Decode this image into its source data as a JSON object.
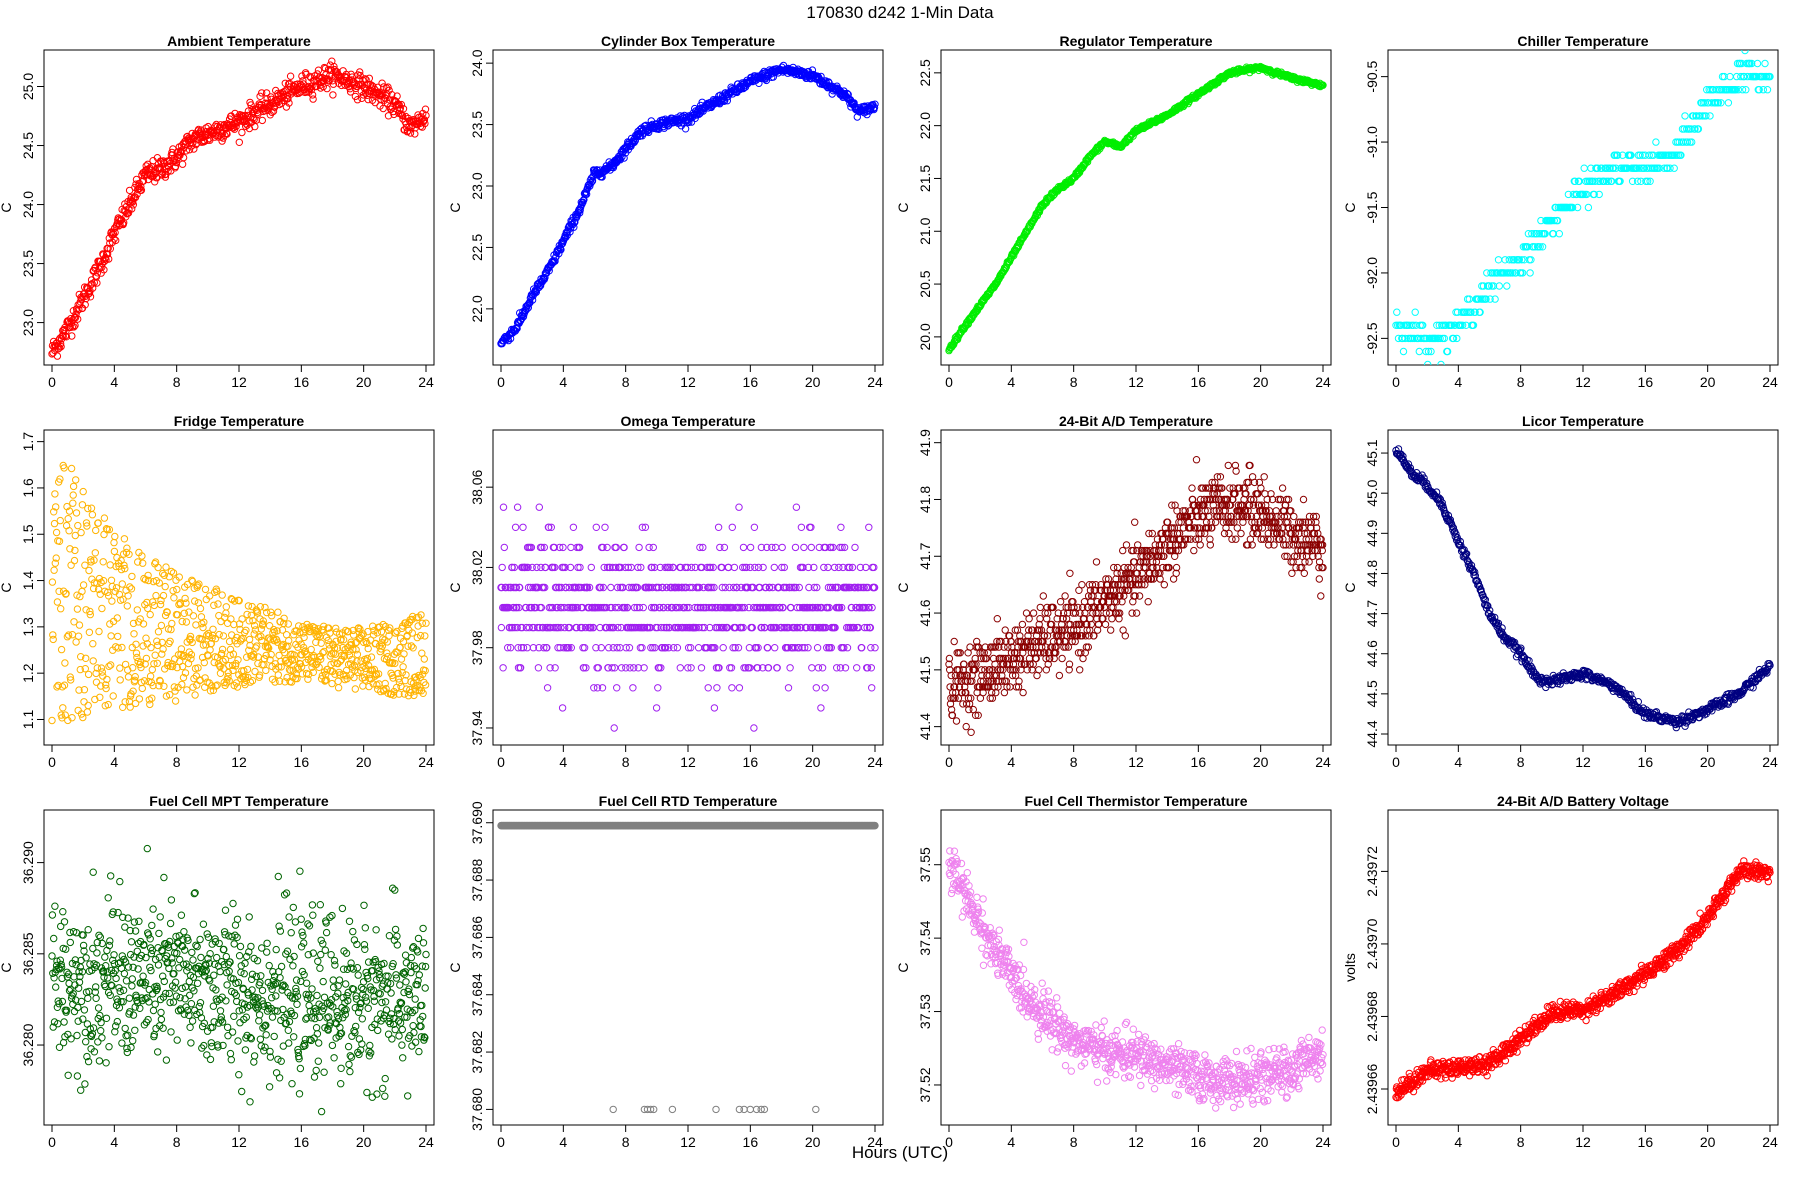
{
  "figure": {
    "title": "170830    d242    1-Min Data",
    "xlabel": "Hours (UTC)"
  },
  "chart_data": [
    {
      "type": "scatter",
      "title": "Ambient Temperature",
      "ylabel": "C",
      "color": "#ff0000",
      "xlim": [
        0,
        24
      ],
      "ylim": [
        22.7,
        25.25
      ],
      "xticks": [
        0,
        4,
        8,
        12,
        16,
        20,
        24
      ],
      "yticks": [
        23.0,
        23.5,
        24.0,
        24.5,
        25.0
      ],
      "ytick_labels": [
        "23.0",
        "23.5",
        "24.0",
        "24.5",
        "25.0"
      ],
      "shape": [
        [
          0,
          22.75
        ],
        [
          1,
          22.95
        ],
        [
          2,
          23.2
        ],
        [
          3,
          23.45
        ],
        [
          4,
          23.75
        ],
        [
          5,
          24.0
        ],
        [
          6,
          24.25
        ],
        [
          7,
          24.3
        ],
        [
          8,
          24.4
        ],
        [
          9,
          24.55
        ],
        [
          10,
          24.6
        ],
        [
          12,
          24.7
        ],
        [
          14,
          24.85
        ],
        [
          16,
          25.0
        ],
        [
          18,
          25.1
        ],
        [
          20,
          25.0
        ],
        [
          22,
          24.85
        ],
        [
          23,
          24.65
        ],
        [
          24,
          24.75
        ]
      ],
      "noise": 0.05,
      "n": 700
    },
    {
      "type": "scatter",
      "title": "Cylinder Box Temperature",
      "ylabel": "C",
      "color": "#0000ff",
      "xlim": [
        0,
        24
      ],
      "ylim": [
        21.6,
        24.05
      ],
      "xticks": [
        0,
        4,
        8,
        12,
        16,
        20,
        24
      ],
      "yticks": [
        22.0,
        22.5,
        23.0,
        23.5,
        24.0
      ],
      "ytick_labels": [
        "22.0",
        "22.5",
        "23.0",
        "23.5",
        "24.0"
      ],
      "shape": [
        [
          0,
          21.72
        ],
        [
          1,
          21.85
        ],
        [
          2,
          22.1
        ],
        [
          3,
          22.3
        ],
        [
          4,
          22.55
        ],
        [
          5,
          22.8
        ],
        [
          6,
          23.1
        ],
        [
          7,
          23.15
        ],
        [
          8,
          23.3
        ],
        [
          9,
          23.45
        ],
        [
          10,
          23.5
        ],
        [
          12,
          23.55
        ],
        [
          14,
          23.7
        ],
        [
          16,
          23.85
        ],
        [
          18,
          23.95
        ],
        [
          20,
          23.9
        ],
        [
          22,
          23.75
        ],
        [
          23,
          23.6
        ],
        [
          24,
          23.65
        ]
      ],
      "noise": 0.02,
      "n": 700
    },
    {
      "type": "scatter",
      "title": "Regulator Temperature",
      "ylabel": "C",
      "color": "#00ee00",
      "xlim": [
        0,
        24
      ],
      "ylim": [
        19.8,
        22.65
      ],
      "xticks": [
        0,
        4,
        8,
        12,
        16,
        20,
        24
      ],
      "yticks": [
        20.0,
        20.5,
        21.0,
        21.5,
        22.0,
        22.5
      ],
      "ytick_labels": [
        "20.0",
        "20.5",
        "21.0",
        "21.5",
        "22.0",
        "22.5"
      ],
      "shape": [
        [
          0,
          19.88
        ],
        [
          1,
          20.1
        ],
        [
          2,
          20.3
        ],
        [
          3,
          20.5
        ],
        [
          4,
          20.75
        ],
        [
          5,
          21.0
        ],
        [
          6,
          21.25
        ],
        [
          7,
          21.4
        ],
        [
          8,
          21.5
        ],
        [
          9,
          21.7
        ],
        [
          10,
          21.85
        ],
        [
          11,
          21.8
        ],
        [
          12,
          21.95
        ],
        [
          14,
          22.1
        ],
        [
          16,
          22.3
        ],
        [
          18,
          22.5
        ],
        [
          20,
          22.55
        ],
        [
          22,
          22.45
        ],
        [
          24,
          22.38
        ]
      ],
      "noise": 0.01,
      "n": 700
    },
    {
      "type": "scatter",
      "title": "Chiller Temperature",
      "ylabel": "C",
      "color": "#00ffff",
      "xlim": [
        0,
        24
      ],
      "ylim": [
        -92.65,
        -90.35
      ],
      "xticks": [
        0,
        4,
        8,
        12,
        16,
        20,
        24
      ],
      "yticks": [
        -92.5,
        -92.0,
        -91.5,
        -91.0,
        -90.5
      ],
      "ytick_labels": [
        "-92.5",
        "-92.0",
        "-91.5",
        "-91.0",
        "-90.5"
      ],
      "shape": [
        [
          0,
          -92.4
        ],
        [
          2,
          -92.5
        ],
        [
          4,
          -92.4
        ],
        [
          6,
          -92.1
        ],
        [
          8,
          -91.9
        ],
        [
          10,
          -91.6
        ],
        [
          12,
          -91.35
        ],
        [
          14,
          -91.2
        ],
        [
          16,
          -91.2
        ],
        [
          18,
          -91.1
        ],
        [
          20,
          -90.7
        ],
        [
          22,
          -90.5
        ],
        [
          24,
          -90.5
        ]
      ],
      "noise": 0.06,
      "quant": 0.1,
      "n": 450
    },
    {
      "type": "scatter",
      "title": "Fridge Temperature",
      "ylabel": "C",
      "color": "#ffb300",
      "xlim": [
        0,
        24
      ],
      "ylim": [
        1.06,
        1.71
      ],
      "xticks": [
        0,
        4,
        8,
        12,
        16,
        20,
        24
      ],
      "yticks": [
        1.1,
        1.2,
        1.3,
        1.4,
        1.5,
        1.6,
        1.7
      ],
      "ytick_labels": [
        "1.1",
        "1.2",
        "1.3",
        "1.4",
        "1.5",
        "1.6",
        "1.7"
      ],
      "upper": [
        [
          0,
          1.69
        ],
        [
          2,
          1.62
        ],
        [
          4,
          1.52
        ],
        [
          6,
          1.45
        ],
        [
          8,
          1.42
        ],
        [
          10,
          1.39
        ],
        [
          12,
          1.36
        ],
        [
          14,
          1.34
        ],
        [
          16,
          1.31
        ],
        [
          18,
          1.3
        ],
        [
          20,
          1.3
        ],
        [
          22,
          1.31
        ],
        [
          24,
          1.34
        ]
      ],
      "lower": [
        [
          0,
          1.08
        ],
        [
          2,
          1.1
        ],
        [
          4,
          1.12
        ],
        [
          6,
          1.13
        ],
        [
          8,
          1.14
        ],
        [
          10,
          1.16
        ],
        [
          12,
          1.17
        ],
        [
          14,
          1.18
        ],
        [
          16,
          1.18
        ],
        [
          18,
          1.17
        ],
        [
          20,
          1.16
        ],
        [
          22,
          1.15
        ],
        [
          24,
          1.15
        ]
      ],
      "n": 900
    },
    {
      "type": "scatter",
      "title": "Omega Temperature",
      "ylabel": "C",
      "color": "#a020f0",
      "xlim": [
        0,
        24
      ],
      "ylim": [
        37.935,
        38.085
      ],
      "xticks": [
        0,
        4,
        8,
        12,
        16,
        20,
        24
      ],
      "yticks": [
        37.94,
        37.98,
        38.02,
        38.06
      ],
      "ytick_labels": [
        "37.94",
        "37.98",
        "38.02",
        "38.06"
      ],
      "shape": [
        [
          0,
          38.0
        ],
        [
          24,
          38.0
        ]
      ],
      "noise": 0.018,
      "quant": 0.01,
      "n": 900
    },
    {
      "type": "scatter",
      "title": "24-Bit A/D Temperature",
      "ylabel": "C",
      "color": "#8b0000",
      "xlim": [
        0,
        24
      ],
      "ylim": [
        41.38,
        41.91
      ],
      "xticks": [
        0,
        4,
        8,
        12,
        16,
        20,
        24
      ],
      "yticks": [
        41.4,
        41.5,
        41.6,
        41.7,
        41.8,
        41.9
      ],
      "ytick_labels": [
        "41.4",
        "41.5",
        "41.6",
        "41.7",
        "41.8",
        "41.9"
      ],
      "shape": [
        [
          0,
          41.47
        ],
        [
          2,
          41.49
        ],
        [
          4,
          41.52
        ],
        [
          6,
          41.55
        ],
        [
          8,
          41.57
        ],
        [
          10,
          41.62
        ],
        [
          12,
          41.66
        ],
        [
          14,
          41.72
        ],
        [
          16,
          41.77
        ],
        [
          18,
          41.79
        ],
        [
          20,
          41.78
        ],
        [
          22,
          41.74
        ],
        [
          24,
          41.72
        ]
      ],
      "noise": 0.03,
      "quant": 0.01,
      "n": 1000
    },
    {
      "type": "scatter",
      "title": "Licor Temperature",
      "ylabel": "C",
      "color": "#000080",
      "xlim": [
        0,
        24
      ],
      "ylim": [
        44.39,
        45.14
      ],
      "xticks": [
        0,
        4,
        8,
        12,
        16,
        20,
        24
      ],
      "yticks": [
        44.4,
        44.5,
        44.6,
        44.7,
        44.8,
        44.9,
        45.0,
        45.1
      ],
      "ytick_labels": [
        "44.4",
        "44.5",
        "44.6",
        "44.7",
        "44.8",
        "44.9",
        "45.0",
        "45.1"
      ],
      "shape": [
        [
          0,
          45.11
        ],
        [
          1,
          45.05
        ],
        [
          2,
          45.02
        ],
        [
          3,
          44.97
        ],
        [
          4,
          44.88
        ],
        [
          5,
          44.8
        ],
        [
          6,
          44.7
        ],
        [
          7,
          44.64
        ],
        [
          8,
          44.6
        ],
        [
          9,
          44.54
        ],
        [
          10,
          44.53
        ],
        [
          12,
          44.55
        ],
        [
          14,
          44.52
        ],
        [
          16,
          44.45
        ],
        [
          18,
          44.43
        ],
        [
          20,
          44.46
        ],
        [
          22,
          44.5
        ],
        [
          24,
          44.57
        ]
      ],
      "noise": 0.006,
      "n": 600
    },
    {
      "type": "scatter",
      "title": "Fuel Cell MPT Temperature",
      "ylabel": "C",
      "color": "#006400",
      "xlim": [
        0,
        24
      ],
      "ylim": [
        36.276,
        36.2925
      ],
      "xticks": [
        0,
        4,
        8,
        12,
        16,
        20,
        24
      ],
      "yticks": [
        36.28,
        36.285,
        36.29
      ],
      "ytick_labels": [
        "36.280",
        "36.285",
        "36.290"
      ],
      "shape": [
        [
          0,
          36.2835
        ],
        [
          8,
          36.2835
        ],
        [
          16,
          36.2825
        ],
        [
          24,
          36.2825
        ]
      ],
      "noise": 0.0022,
      "n": 900
    },
    {
      "type": "scatter",
      "title": "Fuel Cell RTD Temperature",
      "ylabel": "C",
      "color": "#808080",
      "xlim": [
        0,
        24
      ],
      "ylim": [
        37.6797,
        37.6902
      ],
      "xticks": [
        0,
        4,
        8,
        12,
        16,
        20,
        24
      ],
      "yticks": [
        37.68,
        37.682,
        37.684,
        37.686,
        37.688,
        37.69
      ],
      "ytick_labels": [
        "37.680",
        "37.682",
        "37.684",
        "37.686",
        "37.688",
        "37.690"
      ],
      "shape": [
        [
          0,
          37.6899
        ],
        [
          24,
          37.6899
        ]
      ],
      "noise": 0,
      "n": 900,
      "outliers": [
        [
          7.2,
          37.68
        ],
        [
          9.2,
          37.68
        ],
        [
          9.4,
          37.68
        ],
        [
          9.6,
          37.68
        ],
        [
          9.8,
          37.68
        ],
        [
          11,
          37.68
        ],
        [
          13.8,
          37.68
        ],
        [
          15.3,
          37.68
        ],
        [
          15.6,
          37.68
        ],
        [
          16,
          37.68
        ],
        [
          16.4,
          37.68
        ],
        [
          16.7,
          37.68
        ],
        [
          16.9,
          37.68
        ],
        [
          20.2,
          37.68
        ]
      ]
    },
    {
      "type": "scatter",
      "title": "Fuel Cell Thermistor Temperature",
      "ylabel": "C",
      "color": "#ee82ee",
      "xlim": [
        0,
        24
      ],
      "ylim": [
        37.5155,
        37.5565
      ],
      "xticks": [
        0,
        4,
        8,
        12,
        16,
        20,
        24
      ],
      "yticks": [
        37.52,
        37.53,
        37.54,
        37.55
      ],
      "ytick_labels": [
        "37.52",
        "37.53",
        "37.54",
        "37.55"
      ],
      "shape": [
        [
          0,
          37.55
        ],
        [
          1,
          37.546
        ],
        [
          2,
          37.542
        ],
        [
          3,
          37.538
        ],
        [
          4,
          37.535
        ],
        [
          5,
          37.532
        ],
        [
          6,
          37.53
        ],
        [
          7,
          37.528
        ],
        [
          8,
          37.526
        ],
        [
          10,
          37.5245
        ],
        [
          12,
          37.524
        ],
        [
          14,
          37.5225
        ],
        [
          16,
          37.521
        ],
        [
          18,
          37.5205
        ],
        [
          20,
          37.521
        ],
        [
          22,
          37.522
        ],
        [
          24,
          37.525
        ]
      ],
      "noise": 0.0016,
      "n": 900
    },
    {
      "type": "scatter",
      "title": "24-Bit A/D Battery Voltage",
      "ylabel": "volts",
      "color": "#ff0000",
      "xlim": [
        0,
        24
      ],
      "ylim": [
        2.439652,
        2.439735
      ],
      "xticks": [
        0,
        4,
        8,
        12,
        16,
        20,
        24
      ],
      "yticks": [
        2.43966,
        2.43968,
        2.4397,
        2.43972
      ],
      "ytick_labels": [
        "2.43966",
        "2.43968",
        "2.43970",
        "2.43972"
      ],
      "shape": [
        [
          0,
          2.439659
        ],
        [
          2,
          2.439665
        ],
        [
          4,
          2.439666
        ],
        [
          6,
          2.439667
        ],
        [
          8,
          2.439674
        ],
        [
          10,
          2.439681
        ],
        [
          12,
          2.439682
        ],
        [
          14,
          2.439686
        ],
        [
          16,
          2.439692
        ],
        [
          18,
          2.439698
        ],
        [
          20,
          2.439707
        ],
        [
          22,
          2.43972
        ],
        [
          24,
          2.43972
        ]
      ],
      "noise": 1.2e-06,
      "n": 900
    }
  ]
}
